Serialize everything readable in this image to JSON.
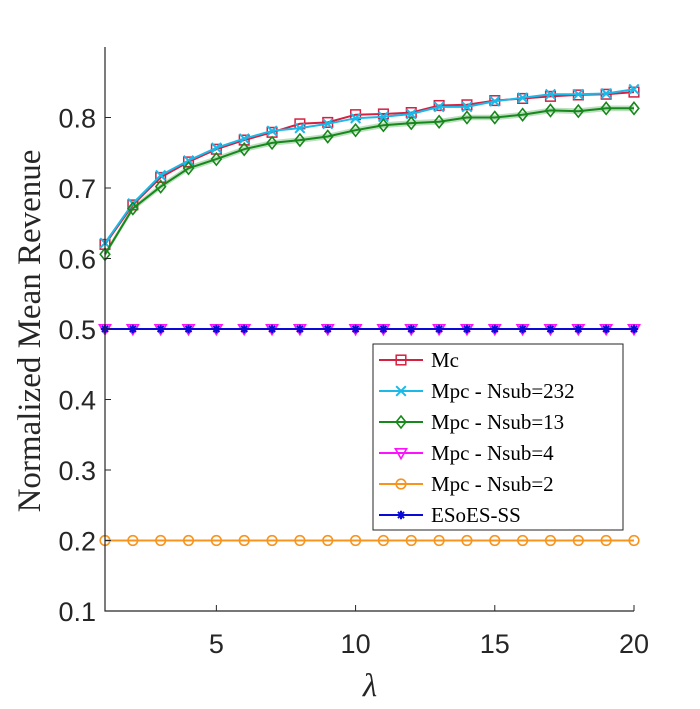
{
  "chart_data": {
    "type": "line",
    "title": "",
    "xlabel": "λ",
    "ylabel": "Normalized Mean Revenue",
    "xlim": [
      1,
      20
    ],
    "ylim": [
      0.1,
      0.9
    ],
    "xticks": [
      5,
      10,
      15,
      20
    ],
    "xtick_labels": [
      "5",
      "10",
      "15",
      "20"
    ],
    "yticks": [
      0.1,
      0.2,
      0.3,
      0.4,
      0.5,
      0.6,
      0.7,
      0.8
    ],
    "ytick_labels": [
      "0.1",
      "0.2",
      "0.3",
      "0.4",
      "0.5",
      "0.6",
      "0.7",
      "0.8"
    ],
    "grid": false,
    "legend_position": "lower-right",
    "x": [
      1,
      2,
      3,
      4,
      5,
      6,
      7,
      8,
      9,
      10,
      11,
      12,
      13,
      14,
      15,
      16,
      17,
      18,
      19,
      20
    ],
    "series": [
      {
        "name": "Mc",
        "color": "#d62040",
        "marker": "square",
        "values": [
          0.62,
          0.676,
          0.715,
          0.737,
          0.755,
          0.768,
          0.779,
          0.791,
          0.793,
          0.804,
          0.805,
          0.807,
          0.817,
          0.818,
          0.824,
          0.827,
          0.83,
          0.832,
          0.833,
          0.836
        ]
      },
      {
        "name": "Mpc - Nsub=232",
        "color": "#1ab9e8",
        "marker": "x",
        "values": [
          0.622,
          0.678,
          0.718,
          0.739,
          0.757,
          0.77,
          0.781,
          0.785,
          0.791,
          0.799,
          0.801,
          0.805,
          0.815,
          0.815,
          0.823,
          0.828,
          0.833,
          0.833,
          0.834,
          0.84
        ]
      },
      {
        "name": "Mpc - Nsub=13",
        "color": "#17881b",
        "marker": "diamond",
        "values": [
          0.606,
          0.671,
          0.702,
          0.728,
          0.741,
          0.755,
          0.764,
          0.768,
          0.773,
          0.782,
          0.789,
          0.792,
          0.794,
          0.8,
          0.8,
          0.804,
          0.81,
          0.809,
          0.813,
          0.813
        ]
      },
      {
        "name": "Mpc - Nsub=4",
        "color": "#ff10ff",
        "marker": "triangle-down",
        "values": [
          0.5,
          0.5,
          0.5,
          0.5,
          0.5,
          0.5,
          0.5,
          0.5,
          0.5,
          0.5,
          0.5,
          0.5,
          0.5,
          0.5,
          0.5,
          0.5,
          0.5,
          0.5,
          0.5,
          0.5
        ]
      },
      {
        "name": "Mpc - Nsub=2",
        "color": "#f7941d",
        "marker": "circle",
        "values": [
          0.2,
          0.2,
          0.2,
          0.2,
          0.2,
          0.2,
          0.2,
          0.2,
          0.2,
          0.2,
          0.2,
          0.2,
          0.2,
          0.2,
          0.2,
          0.2,
          0.2,
          0.2,
          0.2,
          0.2
        ]
      },
      {
        "name": "ESoES-SS",
        "color": "#0a0ad6",
        "marker": "asterisk",
        "values": [
          0.5,
          0.5,
          0.5,
          0.5,
          0.5,
          0.5,
          0.5,
          0.5,
          0.5,
          0.5,
          0.5,
          0.5,
          0.5,
          0.5,
          0.5,
          0.5,
          0.5,
          0.5,
          0.5,
          0.5
        ]
      }
    ]
  }
}
